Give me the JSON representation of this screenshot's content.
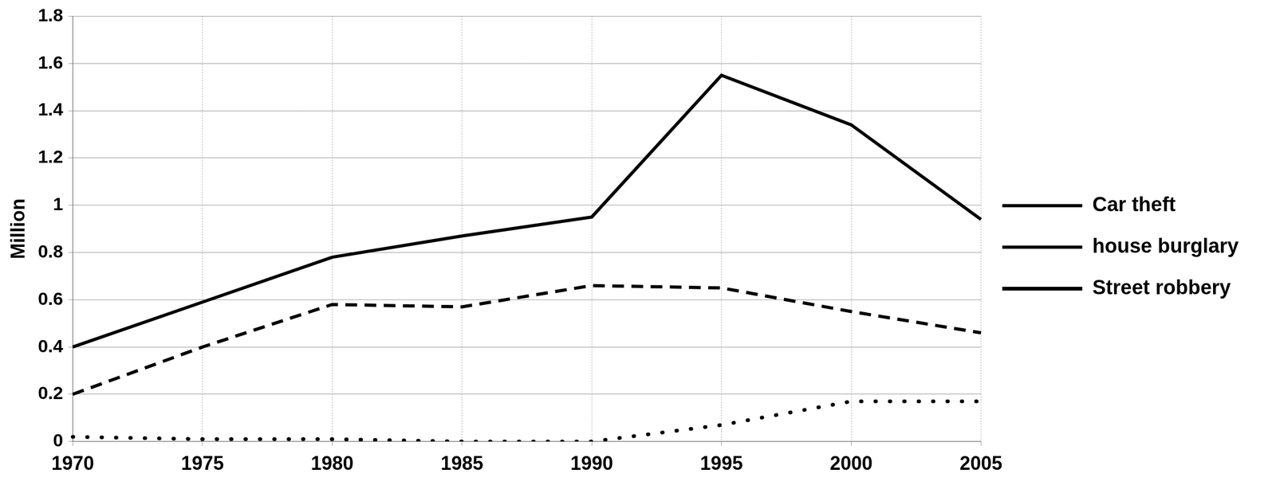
{
  "chart_data": {
    "type": "line",
    "y_label": "Million",
    "categories": [
      "1970",
      "1975",
      "1980",
      "1985",
      "1990",
      "1995",
      "2000",
      "2005"
    ],
    "series": [
      {
        "name": "Car theft",
        "color": "#000000",
        "line_style": "solid",
        "marker": "none",
        "values": [
          0.4,
          0.59,
          0.78,
          0.87,
          0.95,
          1.55,
          1.34,
          0.94
        ]
      },
      {
        "name": "house burglary",
        "color": "#000000",
        "line_style": "dashed",
        "marker": "none",
        "values": [
          0.2,
          0.4,
          0.58,
          0.57,
          0.66,
          0.65,
          0.55,
          0.46
        ]
      },
      {
        "name": "Street robbery",
        "color": "#000000",
        "line_style": "dotted",
        "marker": "none",
        "values": [
          0.02,
          0.01,
          0.01,
          0.0,
          0.0,
          0.07,
          0.17,
          0.17
        ]
      }
    ],
    "ylim": [
      0,
      1.8
    ],
    "yticks": [
      0,
      0.2,
      0.4,
      0.6,
      0.8,
      1,
      1.2,
      1.4,
      1.6,
      1.8
    ],
    "grid": true,
    "legend": "right"
  }
}
